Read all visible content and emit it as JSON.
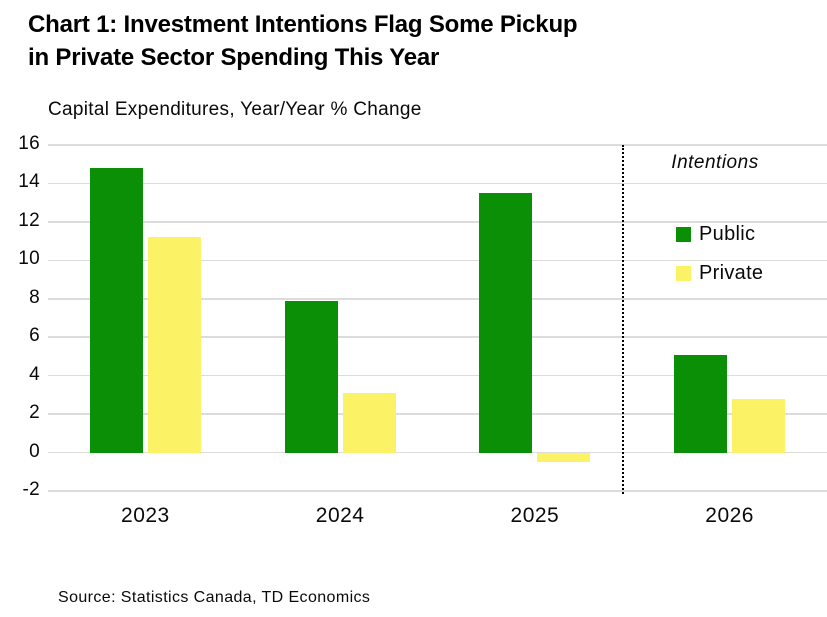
{
  "title": {
    "line1": "Chart 1: Investment Intentions Flag Some Pickup",
    "line2": "in Private Sector Spending This Year"
  },
  "subtitle": "Capital Expenditures, Year/Year % Change",
  "source": "Source: Statistics Canada, TD Economics",
  "colors": {
    "public": "#0A8F06",
    "private": "#FCF266",
    "gridline": "#DCDCDC",
    "separator": "#000000",
    "text": "#000000"
  },
  "chart_data": {
    "type": "bar",
    "title": "Capital Expenditures, Year/Year % Change",
    "categories": [
      "2023",
      "2024",
      "2025",
      "2026"
    ],
    "series": [
      {
        "name": "Public",
        "color": "#0A8F06",
        "values": [
          14.8,
          7.9,
          13.5,
          5.1
        ]
      },
      {
        "name": "Private",
        "color": "#FCF266",
        "values": [
          11.2,
          3.1,
          -0.5,
          2.8
        ]
      }
    ],
    "xlabel": "",
    "ylabel": "",
    "ylim": [
      -2,
      16
    ],
    "yticks": [
      16,
      14,
      12,
      10,
      8,
      6,
      4,
      2,
      0,
      -2
    ],
    "grid": true,
    "legend_position": "inside-right",
    "annotation": "Intentions",
    "separator_before_category": "2026"
  }
}
